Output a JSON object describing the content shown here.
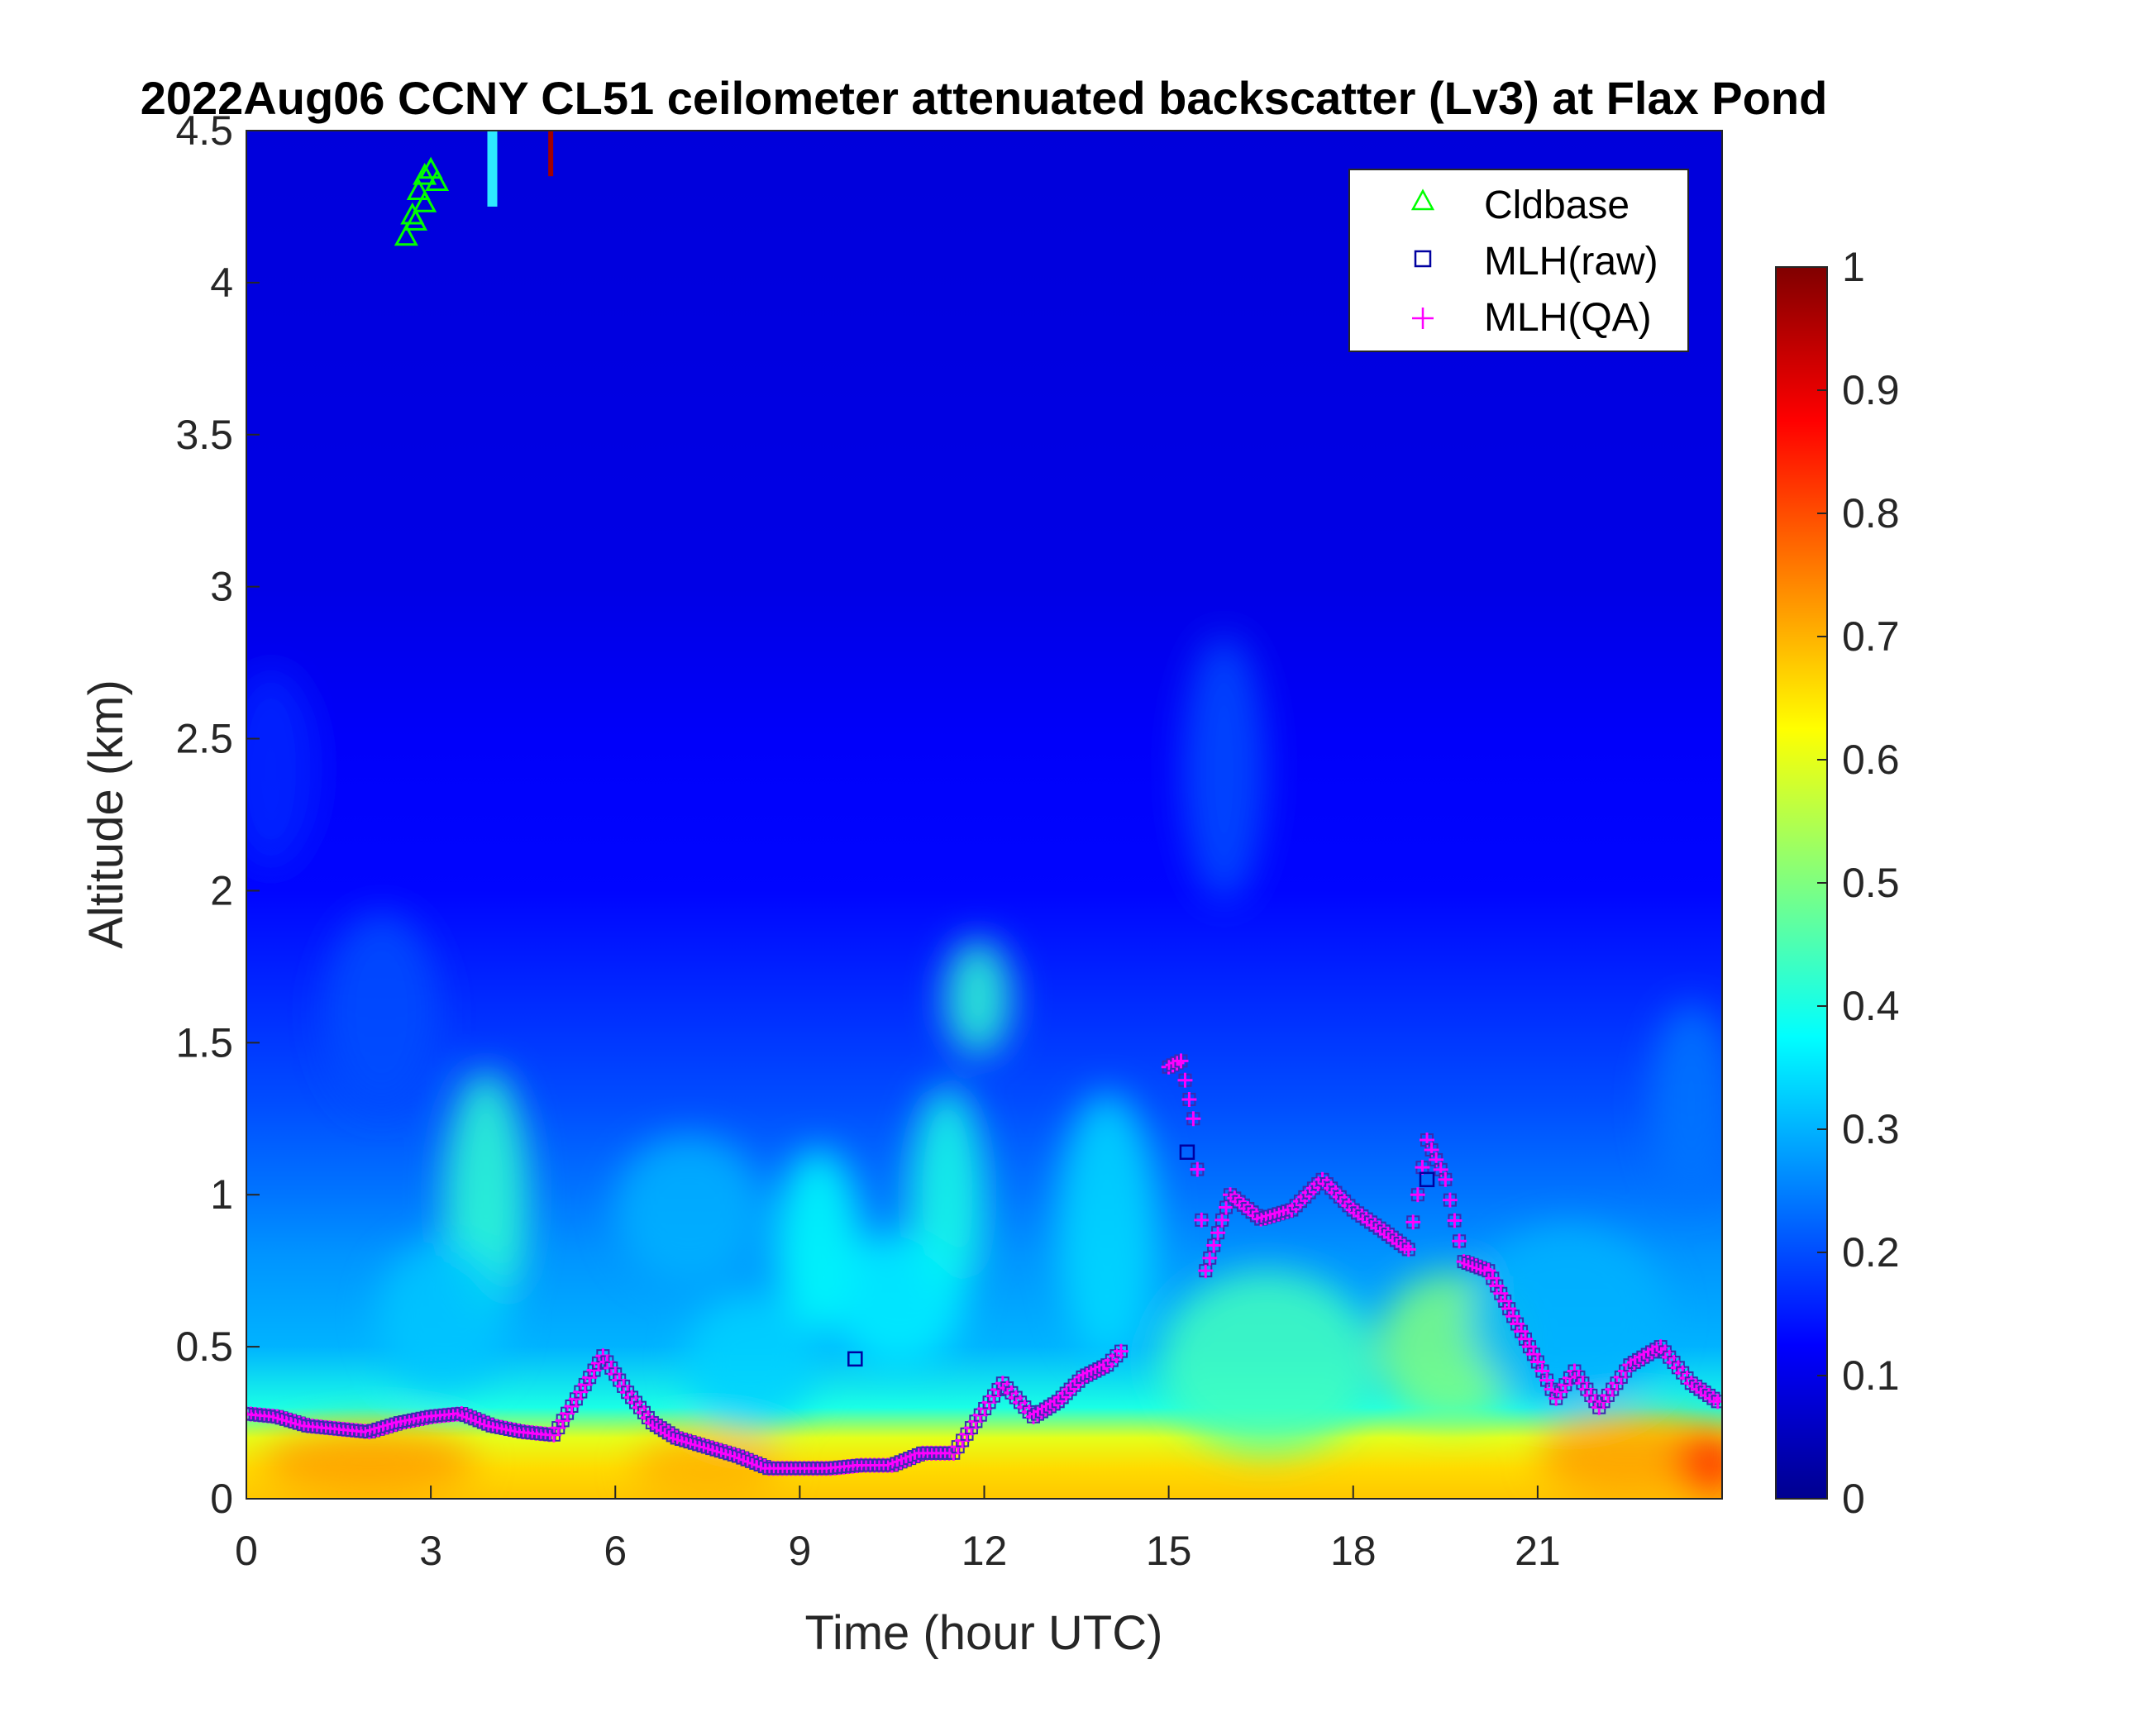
{
  "chart_data": {
    "type": "heatmap",
    "title": "2022Aug06 CCNY CL51 ceilometer attenuated backscatter (Lv3) at Flax Pond",
    "xlabel": "Time (hour UTC)",
    "ylabel": "Altitude (km)",
    "xlim": [
      0,
      24
    ],
    "ylim": [
      0,
      4.5
    ],
    "x_ticks": [
      "0",
      "3",
      "6",
      "9",
      "12",
      "15",
      "18",
      "21"
    ],
    "y_ticks": [
      "0",
      "0.5",
      "1",
      "1.5",
      "2",
      "2.5",
      "3",
      "3.5",
      "4",
      "4.5"
    ],
    "colorbar": {
      "colormap": "jet",
      "range": [
        0,
        1
      ],
      "ticks": [
        "0",
        "0.1",
        "0.2",
        "0.3",
        "0.4",
        "0.5",
        "0.6",
        "0.7",
        "0.8",
        "0.9",
        "1"
      ]
    },
    "legend": {
      "position": "top-right",
      "entries": [
        {
          "label": "Cldbase",
          "marker": "triangle",
          "color": "#00ff00"
        },
        {
          "label": "MLH(raw)",
          "marker": "square",
          "color": "#0000a0"
        },
        {
          "label": "MLH(QA)",
          "marker": "plus",
          "color": "#ff00ff"
        }
      ]
    },
    "background_profile": {
      "altitude_km": [
        0,
        0.1,
        0.2,
        0.3,
        0.5,
        0.8,
        1.0,
        1.3,
        1.6,
        2.0,
        2.5,
        3.0,
        4.5
      ],
      "typical_value": [
        0.68,
        0.66,
        0.6,
        0.4,
        0.3,
        0.27,
        0.24,
        0.2,
        0.17,
        0.13,
        0.12,
        0.1,
        0.09
      ]
    },
    "series": [
      {
        "name": "MLH(QA)",
        "x": [
          0,
          0.5,
          1,
          1.5,
          2,
          2.5,
          3,
          3.5,
          4,
          4.5,
          5,
          5.8,
          6.2,
          6.6,
          7,
          7.5,
          8,
          8.5,
          9,
          9.5,
          10,
          10.5,
          11,
          11.5,
          12.3,
          12.8,
          13.2,
          13.6,
          14.0,
          14.3,
          15.0,
          15.2,
          15.4,
          15.6,
          16,
          16.5,
          17,
          17.5,
          18,
          18.5,
          18.9,
          19.2,
          19.5,
          19.8,
          20.2,
          20.6,
          21,
          21.3,
          21.6,
          22,
          22.5,
          23,
          23.5,
          24
        ],
        "y": [
          0.28,
          0.27,
          0.24,
          0.23,
          0.22,
          0.25,
          0.27,
          0.28,
          0.24,
          0.22,
          0.21,
          0.47,
          0.35,
          0.25,
          0.2,
          0.17,
          0.14,
          0.1,
          0.1,
          0.1,
          0.11,
          0.11,
          0.15,
          0.15,
          0.38,
          0.27,
          0.32,
          0.4,
          0.44,
          0.5,
          1.42,
          1.44,
          1.25,
          0.75,
          1.0,
          0.92,
          0.95,
          1.05,
          0.95,
          0.88,
          0.82,
          1.18,
          1.05,
          0.78,
          0.75,
          0.6,
          0.45,
          0.33,
          0.42,
          0.3,
          0.44,
          0.5,
          0.38,
          0.31
        ]
      },
      {
        "name": "MLH(raw)",
        "x": [
          9.9,
          15.3,
          19.2
        ],
        "y": [
          0.46,
          1.14,
          1.05
        ]
      },
      {
        "name": "Cldbase",
        "x": [
          2.6,
          2.7,
          2.8,
          2.9,
          3.0,
          3.1,
          2.75,
          2.9
        ],
        "y": [
          4.15,
          4.22,
          4.3,
          4.35,
          4.37,
          4.33,
          4.2,
          4.26
        ]
      }
    ]
  }
}
